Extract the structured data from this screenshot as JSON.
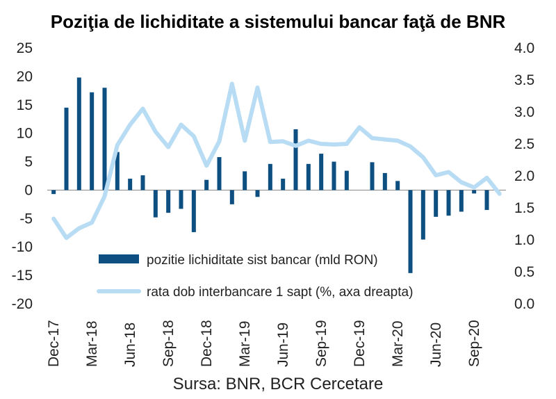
{
  "chart_data": {
    "type": "bar",
    "title": "Poziţia de lichiditate a sistemului bancar faţă de BNR",
    "source": "Sursa: BNR, BCR Cercetare",
    "colors": {
      "bar": "#0d4f80",
      "line": "#b8dcf4"
    },
    "y_left": {
      "ylim": [
        -20,
        25
      ],
      "ticks": [
        "25",
        "20",
        "15",
        "10",
        "5",
        "0",
        "-5",
        "-10",
        "-15",
        "-20"
      ]
    },
    "y_right": {
      "ylim": [
        0.0,
        4.0
      ],
      "ticks": [
        "4.0",
        "3.5",
        "3.0",
        "2.5",
        "2.0",
        "1.5",
        "1.0",
        "0.5",
        "0.0"
      ]
    },
    "x_tick_labels": [
      "Dec-17",
      "Mar-18",
      "Jun-18",
      "Sep-18",
      "Dec-18",
      "Mar-19",
      "Jun-19",
      "Sep-19",
      "Dec-19",
      "Mar-20",
      "Jun-20",
      "Sep-20"
    ],
    "x_tick_month_index": [
      0,
      3,
      6,
      9,
      12,
      15,
      18,
      21,
      24,
      27,
      30,
      33
    ],
    "months": [
      "Dec-17",
      "Jan-18",
      "Feb-18",
      "Mar-18",
      "Apr-18",
      "May-18",
      "Jun-18",
      "Jul-18",
      "Aug-18",
      "Sep-18",
      "Oct-18",
      "Nov-18",
      "Dec-18",
      "Jan-19",
      "Feb-19",
      "Mar-19",
      "Apr-19",
      "May-19",
      "Jun-19",
      "Jul-19",
      "Aug-19",
      "Sep-19",
      "Oct-19",
      "Nov-19",
      "Dec-19",
      "Jan-20",
      "Feb-20",
      "Mar-20",
      "Apr-20",
      "May-20",
      "Jun-20",
      "Jul-20",
      "Aug-20",
      "Sep-20",
      "Oct-20",
      "Nov-20"
    ],
    "legend_position": "bottom-center",
    "series": [
      {
        "name": "pozitie lichiditate sist bancar (mld RON)",
        "type": "bar",
        "axis": "left",
        "values": [
          -0.7,
          14.5,
          19.8,
          17.2,
          18.0,
          6.7,
          2.0,
          2.6,
          -4.8,
          -4.0,
          -3.3,
          -7.4,
          1.8,
          5.8,
          -2.5,
          3.3,
          -1.2,
          4.6,
          2.0,
          10.7,
          4.6,
          6.4,
          5.0,
          3.4,
          null,
          4.9,
          3.0,
          1.6,
          -14.6,
          -8.7,
          -4.7,
          -4.5,
          -3.8,
          -0.6,
          -3.5,
          null
        ]
      },
      {
        "name": "rata dob interbancare 1 sapt (%, axa dreapta)",
        "type": "line",
        "axis": "right",
        "values": [
          1.33,
          1.03,
          1.18,
          1.27,
          1.68,
          2.48,
          2.8,
          3.05,
          2.69,
          2.45,
          2.8,
          2.62,
          2.16,
          2.54,
          3.44,
          2.55,
          3.38,
          2.53,
          2.54,
          2.47,
          2.55,
          2.5,
          2.49,
          2.5,
          2.76,
          2.59,
          2.57,
          2.55,
          2.46,
          2.29,
          2.01,
          2.06,
          1.9,
          1.82,
          1.97,
          1.72
        ]
      }
    ]
  }
}
